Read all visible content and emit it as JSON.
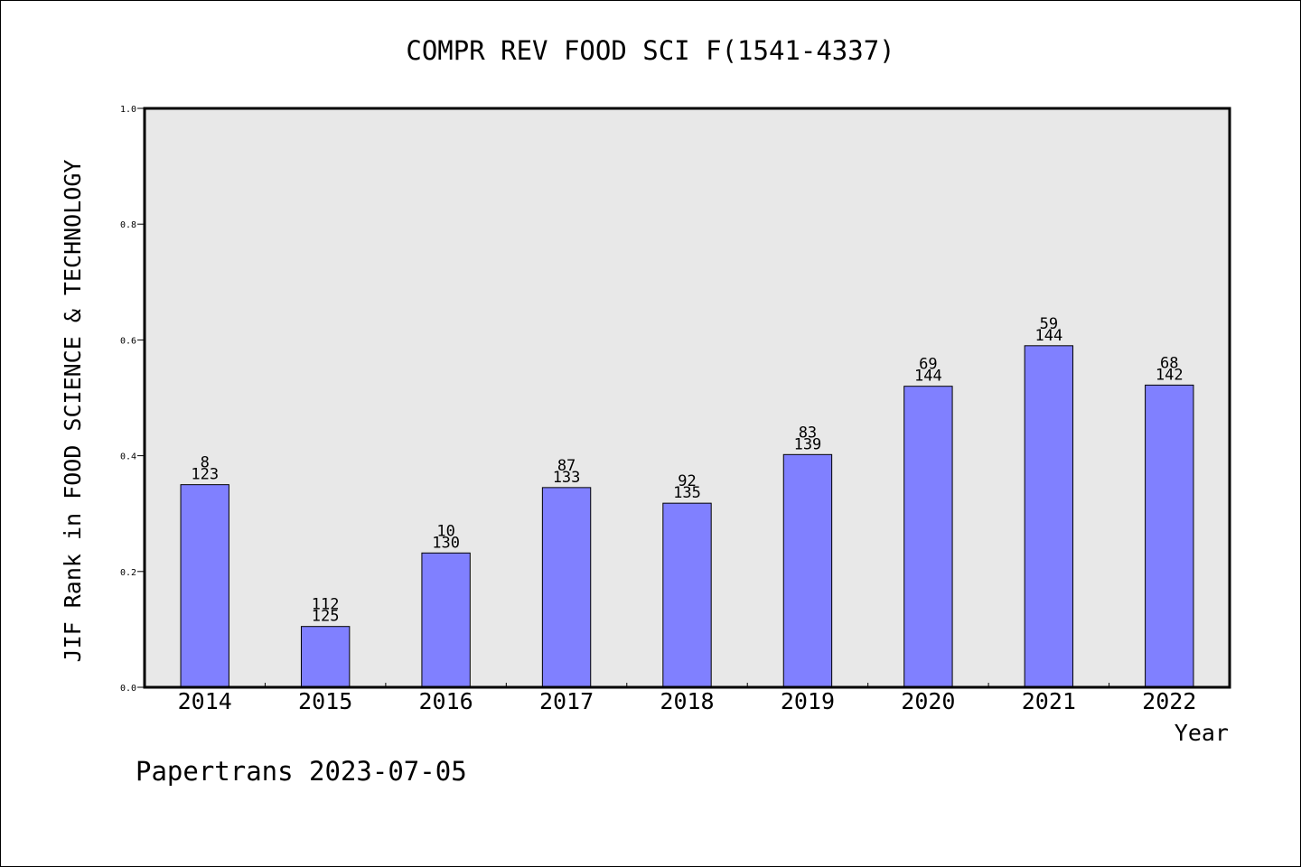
{
  "chart_data": {
    "type": "bar",
    "title": "COMPR REV FOOD SCI F(1541-4337)",
    "xlabel": "Year",
    "ylabel": "JIF Rank in FOOD SCIENCE & TECHNOLOGY",
    "ylim": [
      0,
      1.0
    ],
    "yticks": [
      "0.0",
      "0.2",
      "0.4",
      "0.6",
      "0.8",
      "1.0"
    ],
    "categories": [
      "2014",
      "2015",
      "2016",
      "2017",
      "2018",
      "2019",
      "2020",
      "2021",
      "2022"
    ],
    "values": [
      0.35,
      0.105,
      0.232,
      0.345,
      0.318,
      0.402,
      0.52,
      0.59,
      0.522
    ],
    "rank_labels": [
      "8",
      "112",
      "10",
      "87",
      "92",
      "83",
      "69",
      "59",
      "68"
    ],
    "total_labels": [
      "123",
      "125",
      "130",
      "133",
      "135",
      "139",
      "144",
      "144",
      "142"
    ],
    "bar_color": "#8080ff",
    "plot_background": "#e8e8e8",
    "grid": false
  },
  "footer": "Papertrans 2023-07-05"
}
